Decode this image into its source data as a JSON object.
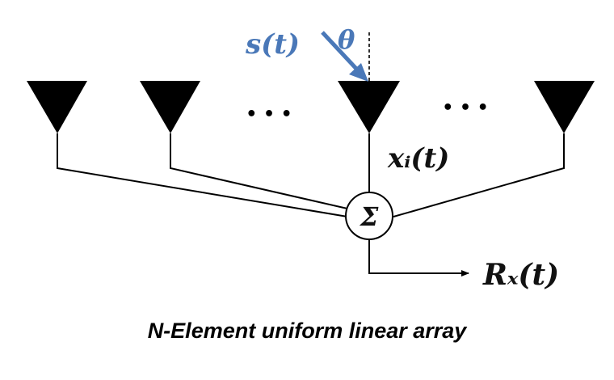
{
  "diagram": {
    "signal_label": "s(t)",
    "angle_label": "θ",
    "element_output_label": "xᵢ(t)",
    "summation_symbol": "Σ",
    "output_label": "Rₓ(t)",
    "ellipsis_left": "• • •",
    "ellipsis_right": "• • •",
    "caption": "N-Element uniform linear array",
    "colors": {
      "signal": "#4a78b8",
      "lines": "#000000"
    },
    "icons": [
      "antenna-icon",
      "summation-icon",
      "arrow-icon"
    ]
  }
}
